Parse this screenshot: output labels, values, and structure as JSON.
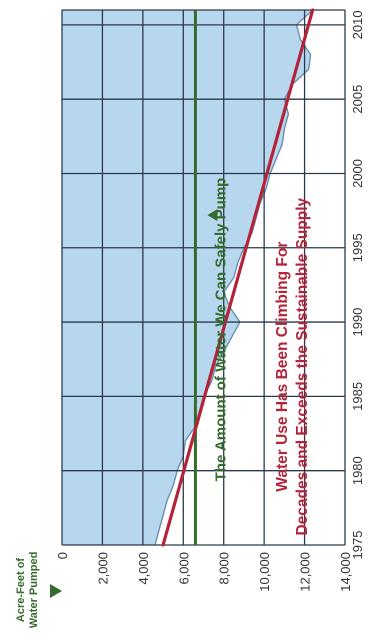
{
  "chart_data": {
    "type": "area",
    "title_line1": "Water Use Has Been Climbing For",
    "title_line2": "Decades and Exceeds the Sustainable Supply",
    "ylabel_line1": "Acre-Feet of",
    "ylabel_line2": "Water Pumped",
    "xlim": [
      1975,
      2011
    ],
    "ylim": [
      0,
      14000
    ],
    "x_ticks": [
      1975,
      1980,
      1985,
      1990,
      1995,
      2000,
      2005,
      2010
    ],
    "y_ticks": [
      0,
      2000,
      4000,
      6000,
      8000,
      10000,
      12000,
      14000
    ],
    "y_tick_labels": [
      "0",
      "2,000",
      "4,000",
      "6,000",
      "8,000",
      "10,000",
      "12,000",
      "14,000"
    ],
    "grid": true,
    "series": [
      {
        "kind": "area",
        "values": [
          [
            1975,
            4600
          ],
          [
            1976,
            4800
          ],
          [
            1977,
            5000
          ],
          [
            1978,
            5200
          ],
          [
            1979,
            5500
          ],
          [
            1980,
            5700
          ],
          [
            1981,
            6000
          ],
          [
            1982,
            6100
          ],
          [
            1983,
            6600
          ],
          [
            1984,
            6800
          ],
          [
            1985,
            7000
          ],
          [
            1986,
            7400
          ],
          [
            1987,
            7600
          ],
          [
            1988,
            8000
          ],
          [
            1989,
            8400
          ],
          [
            1990,
            8800
          ],
          [
            1991,
            8300
          ],
          [
            1992,
            8000
          ],
          [
            1993,
            8500
          ],
          [
            1994,
            8700
          ],
          [
            1995,
            9000
          ],
          [
            1996,
            9400
          ],
          [
            1997,
            9600
          ],
          [
            1998,
            9800
          ],
          [
            1999,
            10100
          ],
          [
            2000,
            10300
          ],
          [
            2001,
            10600
          ],
          [
            2002,
            10900
          ],
          [
            2003,
            11000
          ],
          [
            2004,
            11200
          ],
          [
            2005,
            11000
          ],
          [
            2006,
            11400
          ],
          [
            2007,
            12200
          ],
          [
            2008,
            12300
          ],
          [
            2009,
            11800
          ],
          [
            2010,
            11600
          ],
          [
            2011,
            12400
          ]
        ]
      },
      {
        "kind": "trend",
        "color": "#b3233a",
        "values": [
          [
            1975,
            5000
          ],
          [
            2011,
            12400
          ]
        ]
      },
      {
        "kind": "sustainable",
        "label": "The Amount of Water We Can Safely Pump",
        "color": "#356b2c",
        "values": [
          [
            1975,
            6600
          ],
          [
            2011,
            6600
          ]
        ]
      }
    ]
  },
  "colors": {
    "area_fill": "#b7d7ef",
    "area_edge": "#6a8fae",
    "grid": "#2b3a4a",
    "title": "#b3233a",
    "axis_label": "#356b2c",
    "tick_text": "#333333"
  }
}
